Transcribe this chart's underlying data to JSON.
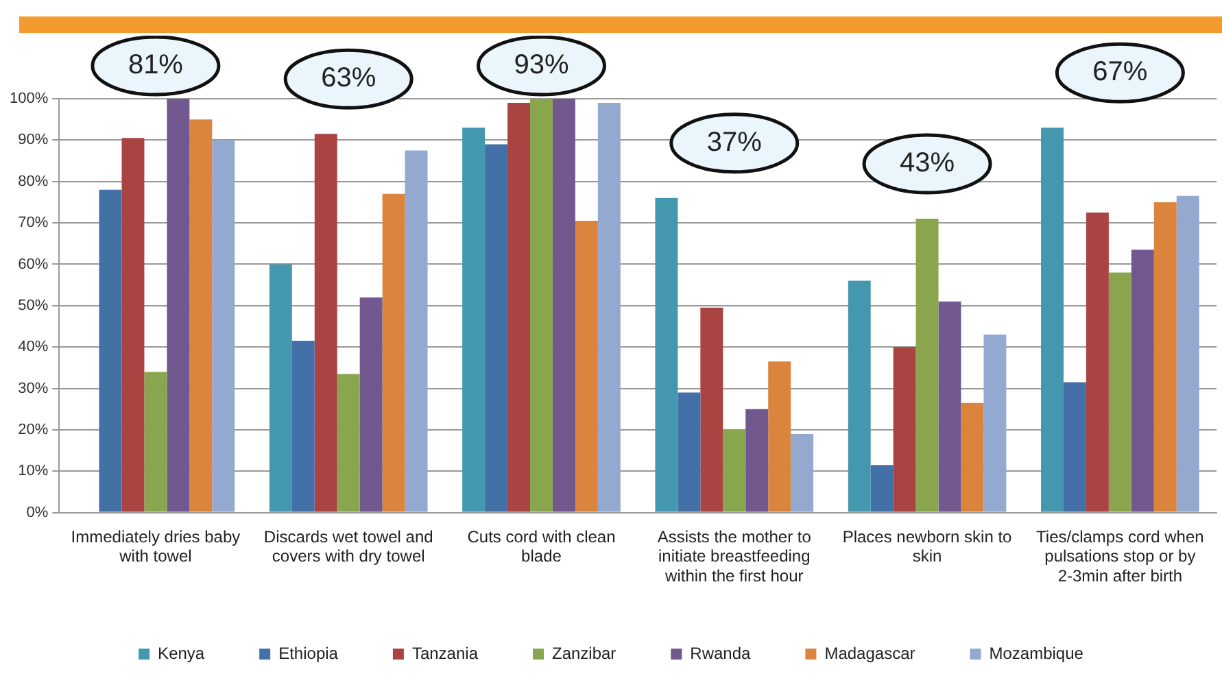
{
  "chart_data": {
    "type": "bar",
    "categories": [
      "Immediately dries baby with towel",
      "Discards wet towel and covers with dry towel",
      "Cuts cord with clean blade",
      "Assists the mother to initiate breastfeeding within the first hour",
      "Places newborn skin to skin",
      "Ties/clamps cord when pulsations stop or by 2-3min after birth"
    ],
    "series": [
      {
        "name": "Kenya",
        "color": "#4398b0",
        "values": [
          null,
          60,
          93,
          76,
          56,
          93
        ]
      },
      {
        "name": "Ethiopia",
        "color": "#4470a8",
        "values": [
          78,
          41.5,
          89,
          29,
          11.5,
          31.5
        ]
      },
      {
        "name": "Tanzania",
        "color": "#aa4443",
        "values": [
          90.5,
          91.5,
          99,
          49.5,
          40,
          72.5
        ]
      },
      {
        "name": "Zanzibar",
        "color": "#89a54e",
        "values": [
          34,
          33.5,
          100,
          20,
          71,
          58
        ]
      },
      {
        "name": "Rwanda",
        "color": "#71588f",
        "values": [
          100,
          52,
          100,
          25,
          51,
          63.5
        ]
      },
      {
        "name": "Madagascar",
        "color": "#db843d",
        "values": [
          95,
          77,
          70.5,
          36.5,
          26.5,
          75
        ]
      },
      {
        "name": "Mozambique",
        "color": "#93a9cf",
        "values": [
          90,
          87.5,
          99,
          19,
          43,
          76.5
        ]
      }
    ],
    "ylim": [
      0,
      100
    ],
    "yticks": [
      {
        "value": 0,
        "label": "0%"
      },
      {
        "value": 10,
        "label": "10%"
      },
      {
        "value": 20,
        "label": "20%"
      },
      {
        "value": 30,
        "label": "30%"
      },
      {
        "value": 40,
        "label": "40%"
      },
      {
        "value": 50,
        "label": "50%"
      },
      {
        "value": 60,
        "label": "60%"
      },
      {
        "value": 70,
        "label": "70%"
      },
      {
        "value": 80,
        "label": "80%"
      },
      {
        "value": 90,
        "label": "90%"
      },
      {
        "value": 100,
        "label": "100%"
      }
    ],
    "grid": "y",
    "legend": "bottom",
    "annotations": [
      "81%",
      "63%",
      "93%",
      "37%",
      "43%",
      "67%"
    ]
  }
}
